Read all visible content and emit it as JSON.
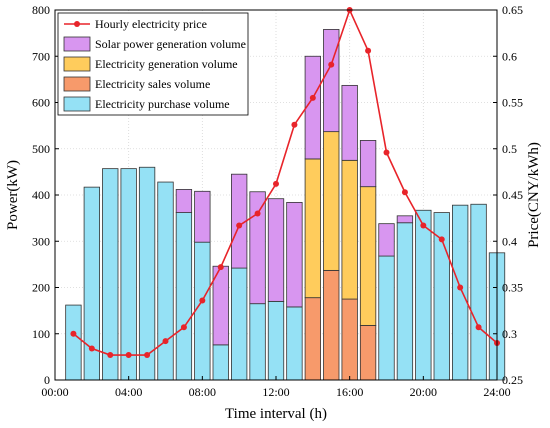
{
  "chart_data": {
    "type": "bar",
    "xlabel": "Time interval (h)",
    "ylabel": "Power(kW)",
    "y2label": "Price(CNY/kWh)",
    "xlim": [
      0,
      24
    ],
    "ylim": [
      0,
      800
    ],
    "y2lim": [
      0.25,
      0.65
    ],
    "x_ticks": [
      "00:00",
      "04:00",
      "08:00",
      "12:00",
      "16:00",
      "20:00",
      "24:00"
    ],
    "x_tick_values": [
      0,
      4,
      8,
      12,
      16,
      20,
      24
    ],
    "y_ticks": [
      0,
      100,
      200,
      300,
      400,
      500,
      600,
      700,
      800
    ],
    "y2_ticks": [
      "0.25",
      "0.3",
      "0.35",
      "0.4",
      "0.45",
      "0.5",
      "0.55",
      "0.6",
      "0.65"
    ],
    "y2_tick_values": [
      0.25,
      0.3,
      0.35,
      0.4,
      0.45,
      0.5,
      0.55,
      0.6,
      0.65
    ],
    "legend_position": "top-left",
    "hours": [
      1,
      2,
      3,
      4,
      5,
      6,
      7,
      8,
      9,
      10,
      11,
      12,
      13,
      14,
      15,
      16,
      17,
      18,
      19,
      20,
      21,
      22,
      23,
      24
    ],
    "series": [
      {
        "name": "Electricity sales volume",
        "color": "#F79A6B",
        "values": [
          0,
          0,
          0,
          0,
          0,
          0,
          0,
          0,
          0,
          0,
          0,
          0,
          0,
          178,
          237,
          175,
          118,
          0,
          0,
          0,
          0,
          0,
          0,
          0
        ]
      },
      {
        "name": "Electricity generation volume",
        "color": "#FFCC5C",
        "values": [
          0,
          0,
          0,
          0,
          0,
          0,
          0,
          0,
          0,
          0,
          0,
          0,
          0,
          300,
          300,
          300,
          300,
          0,
          0,
          0,
          0,
          0,
          0,
          0
        ]
      },
      {
        "name": "Electricity purchase volume",
        "color": "#95E1F5",
        "values": [
          162,
          417,
          457,
          457,
          460,
          428,
          362,
          298,
          76,
          242,
          165,
          170,
          158,
          0,
          0,
          0,
          0,
          268,
          340,
          367,
          362,
          378,
          380,
          275
        ]
      },
      {
        "name": "Solar power generation volume",
        "color": "#D896F0",
        "values": [
          0,
          0,
          0,
          0,
          0,
          0,
          50,
          110,
          170,
          203,
          242,
          222,
          226,
          222,
          221,
          162,
          100,
          70,
          15,
          0,
          0,
          0,
          0,
          0
        ]
      }
    ],
    "line": {
      "name": "Hourly electricity price",
      "color": "#E8242A",
      "values": [
        0.3,
        0.284,
        0.277,
        0.277,
        0.277,
        0.292,
        0.307,
        0.336,
        0.372,
        0.417,
        0.43,
        0.462,
        0.526,
        0.555,
        0.591,
        0.65,
        0.606,
        0.496,
        0.453,
        0.417,
        0.402,
        0.35,
        0.307,
        0.29
      ]
    },
    "legend_order": [
      "Hourly electricity price",
      "Solar power generation volume",
      "Electricity generation volume",
      "Electricity sales volume",
      "Electricity purchase volume"
    ]
  }
}
